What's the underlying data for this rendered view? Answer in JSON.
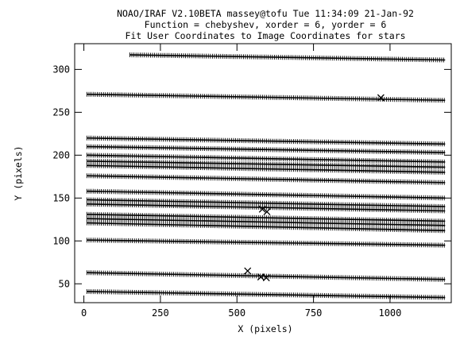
{
  "chart_data": {
    "type": "scatter",
    "title": [
      "NOAO/IRAF V2.10BETA massey@tofu Tue 11:34:09 21-Jan-92",
      "Function = chebyshev, xorder = 6, yorder = 6",
      "Fit User Coordinates to Image Coordinates for stars"
    ],
    "xlabel": "X (pixels)",
    "ylabel": "Y (pixels)",
    "xlim": [
      -30,
      1200
    ],
    "ylim": [
      28,
      330
    ],
    "xticks": [
      0,
      250,
      500,
      750,
      1000
    ],
    "yticks": [
      50,
      100,
      150,
      200,
      250,
      300
    ],
    "grid": false,
    "legend": "none",
    "marker": "plus",
    "rows": [
      {
        "x_start": 150,
        "x_end": 1180,
        "y_start": 317,
        "y_end": 311
      },
      {
        "x_start": 10,
        "x_end": 1180,
        "y_start": 271,
        "y_end": 264
      },
      {
        "x_start": 10,
        "x_end": 1180,
        "y_start": 220,
        "y_end": 213
      },
      {
        "x_start": 10,
        "x_end": 1180,
        "y_start": 210,
        "y_end": 203
      },
      {
        "x_start": 10,
        "x_end": 1180,
        "y_start": 200,
        "y_end": 192
      },
      {
        "x_start": 10,
        "x_end": 1180,
        "y_start": 193,
        "y_end": 186
      },
      {
        "x_start": 10,
        "x_end": 1180,
        "y_start": 188,
        "y_end": 180
      },
      {
        "x_start": 10,
        "x_end": 1180,
        "y_start": 176,
        "y_end": 168
      },
      {
        "x_start": 10,
        "x_end": 1180,
        "y_start": 158,
        "y_end": 150
      },
      {
        "x_start": 10,
        "x_end": 1180,
        "y_start": 148,
        "y_end": 140
      },
      {
        "x_start": 10,
        "x_end": 1180,
        "y_start": 143,
        "y_end": 135
      },
      {
        "x_start": 10,
        "x_end": 1180,
        "y_start": 131,
        "y_end": 123
      },
      {
        "x_start": 10,
        "x_end": 1180,
        "y_start": 126,
        "y_end": 118
      },
      {
        "x_start": 10,
        "x_end": 1180,
        "y_start": 121,
        "y_end": 112
      },
      {
        "x_start": 10,
        "x_end": 1180,
        "y_start": 101,
        "y_end": 95
      },
      {
        "x_start": 10,
        "x_end": 1180,
        "y_start": 63,
        "y_end": 55
      },
      {
        "x_start": 10,
        "x_end": 1180,
        "y_start": 41,
        "y_end": 34
      }
    ],
    "rejected_points": [
      {
        "x": 970,
        "y": 267
      },
      {
        "x": 583,
        "y": 137
      },
      {
        "x": 598,
        "y": 134
      },
      {
        "x": 535,
        "y": 65
      },
      {
        "x": 578,
        "y": 58
      },
      {
        "x": 596,
        "y": 57
      }
    ]
  }
}
